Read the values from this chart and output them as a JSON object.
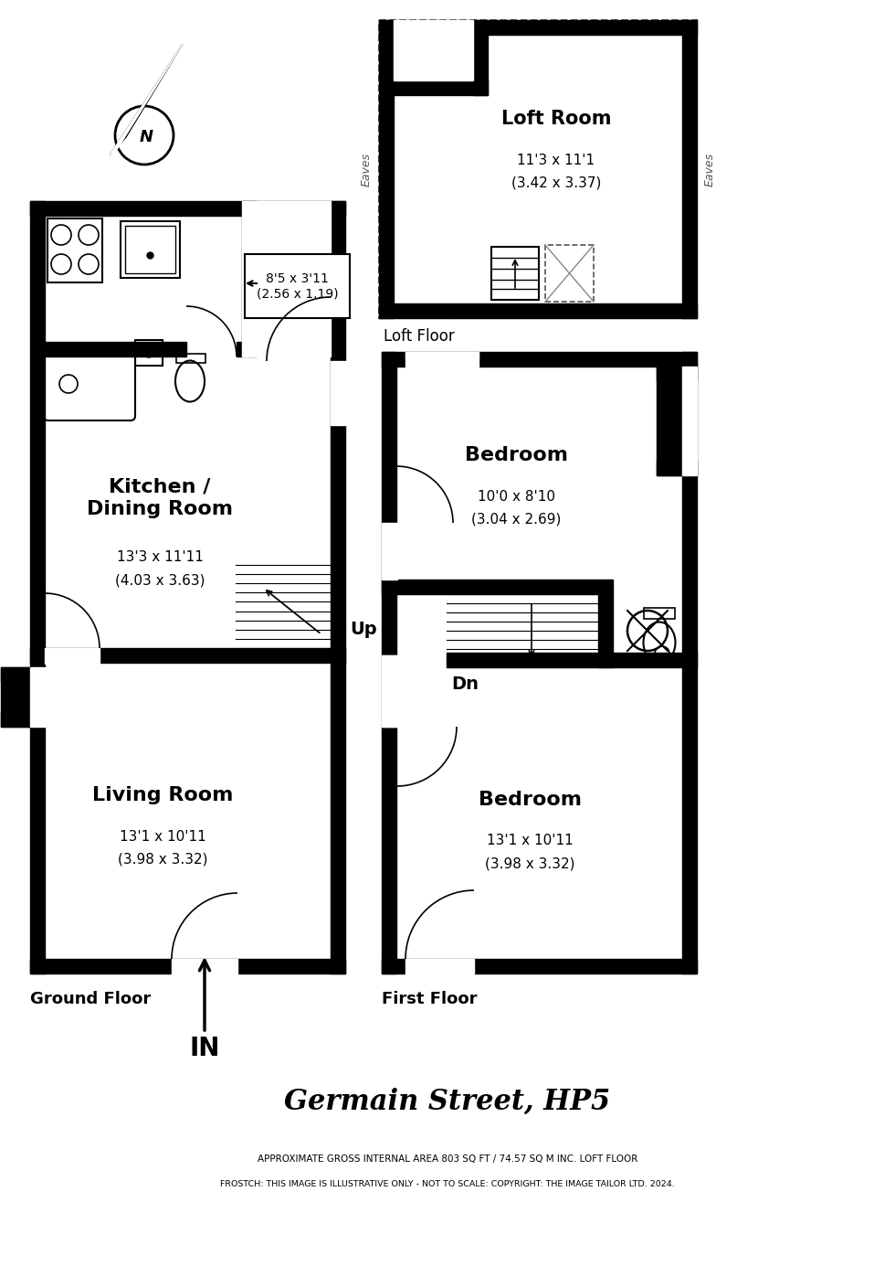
{
  "title": "Germain Street, HP5",
  "subtitle1": "APPROXIMATE GROSS INTERNAL AREA 803 SQ FT / 74.57 SQ M INC. LOFT FLOOR",
  "subtitle2": "FROSTCH: THIS IMAGE IS ILLUSTRATIVE ONLY - NOT TO SCALE: COPYRIGHT: THE IMAGE TAILOR LTD. 2024.",
  "ground_floor_label": "Ground Floor",
  "first_floor_label": "First Floor",
  "loft_floor_label": "Loft Floor",
  "bg_color": "#ffffff",
  "wall_color": "#000000",
  "wall_thickness": 16
}
